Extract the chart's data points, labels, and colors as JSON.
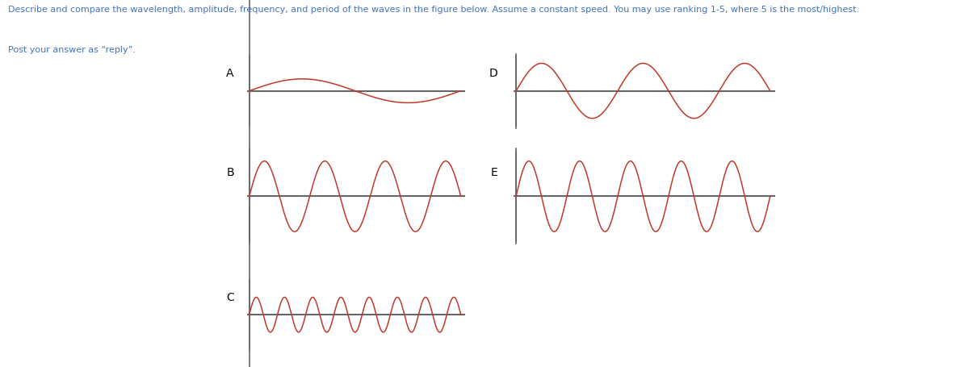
{
  "title_text": "Describe and compare the wavelength, amplitude, frequency, and period of the waves in the figure below. Assume a constant speed. You may use ranking 1-5, where 5 is the most/highest.",
  "subtitle_text": "Post your answer as “reply”.",
  "title_color": "#4472c4",
  "subtitle_color": "#4472c4",
  "wave_color": "#c0392b",
  "axis_color": "#666666",
  "background_color": "#ffffff",
  "waves": {
    "A": {
      "cycles": 1.0,
      "amplitude": 0.15,
      "label": "A"
    },
    "B": {
      "cycles": 3.5,
      "amplitude": 1.0,
      "label": "B"
    },
    "C": {
      "cycles": 7.5,
      "amplitude": 0.22,
      "label": "C"
    },
    "D": {
      "cycles": 2.5,
      "amplitude": 1.0,
      "label": "D"
    },
    "E": {
      "cycles": 5.0,
      "amplitude": 1.0,
      "label": "E"
    }
  },
  "panels": {
    "A": [
      0.255,
      0.655,
      0.225,
      0.195
    ],
    "B": [
      0.255,
      0.34,
      0.225,
      0.25
    ],
    "C": [
      0.255,
      0.045,
      0.225,
      0.195
    ],
    "D": [
      0.53,
      0.655,
      0.27,
      0.195
    ],
    "E": [
      0.53,
      0.34,
      0.27,
      0.25
    ]
  },
  "fig_width": 12.0,
  "fig_height": 4.55,
  "dpi": 100
}
